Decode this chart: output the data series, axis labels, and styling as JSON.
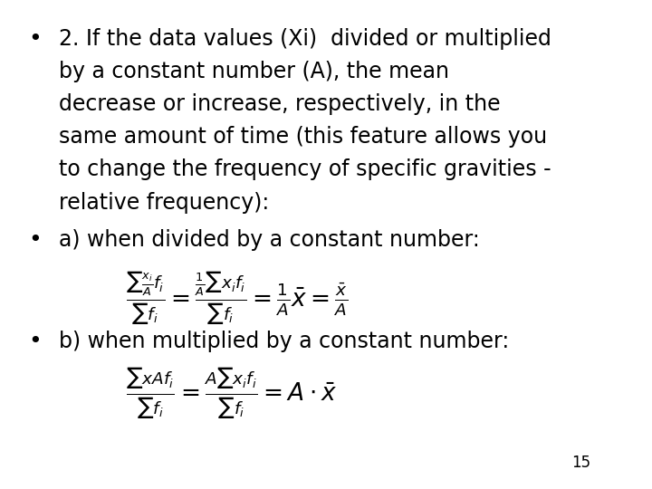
{
  "background_color": "#ffffff",
  "text_color": "#000000",
  "page_number": "15",
  "bullet1": "2. If the data values (Xi)  divided or multiplied by a constant number (A), the mean decrease or increase, respectively, in the same amount of time (this feature allows you to change the frequency of specific gravities - relative frequency):",
  "bullet2": "a) when divided by a constant number:",
  "bullet3": "b) when multiplied by a constant number:",
  "formula_a": "\\frac{\\sum\\frac{x_i}{A}f_i}{\\sum f_i} = \\frac{\\frac{1}{A}\\sum x_i f_i}{\\sum f_i} = \\frac{1}{A}\\bar{x} = \\frac{\\bar{x}}{A}",
  "formula_b": "\\frac{\\sum x_A f_i}{\\sum f_i} = \\frac{A\\sum x_i f_i}{\\sum f_i} = A \\cdot \\bar{x}",
  "font_size_bullet": 17,
  "font_size_formula": 16
}
